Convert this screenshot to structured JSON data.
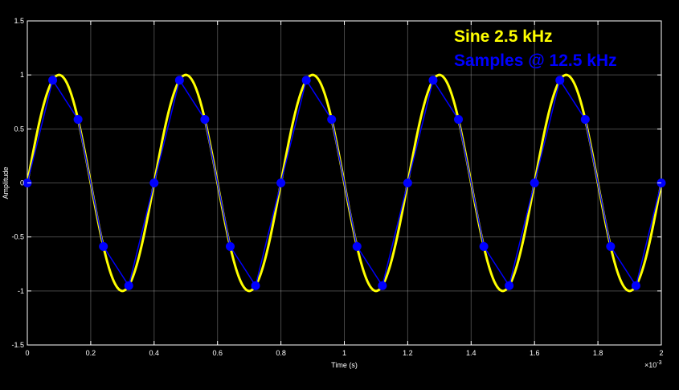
{
  "chart_data": {
    "type": "line",
    "xlabel": "Time (s)",
    "ylabel": "Amplitude",
    "x_exponent": "×10",
    "x_exponent_power": "-3",
    "xlim": [
      0,
      0.002
    ],
    "ylim": [
      -1.5,
      1.5
    ],
    "x_ticks": [
      "0",
      "0.2",
      "0.4",
      "0.6",
      "0.8",
      "1",
      "1.2",
      "1.4",
      "1.6",
      "1.8",
      "2"
    ],
    "y_ticks": [
      "1.5",
      "1",
      "0.5",
      "0",
      "-0.5",
      "-1",
      "-1.5"
    ],
    "grid": true,
    "legend_placement": "top-right",
    "series": [
      {
        "name": "Sine 2.5 kHz",
        "color": "#ffff00",
        "frequency_hz": 2500,
        "amplitude": 1
      },
      {
        "name": "Samples @ 12.5 kHz",
        "color": "#0000ff",
        "x": [
          0,
          8e-05,
          0.00016,
          0.00024,
          0.00032,
          0.0004,
          0.00048,
          0.00056,
          0.00064,
          0.00072,
          0.0008,
          0.00088,
          0.00096,
          0.00104,
          0.00112,
          0.0012,
          0.00128,
          0.00136,
          0.00144,
          0.00152,
          0.0016,
          0.00168,
          0.00176,
          0.00184,
          0.00192,
          0.002
        ],
        "values": [
          0,
          0.951,
          0.588,
          -0.588,
          -0.951,
          0,
          0.951,
          0.588,
          -0.588,
          -0.951,
          0,
          0.951,
          0.588,
          -0.588,
          -0.951,
          0,
          0.951,
          0.588,
          -0.588,
          -0.951,
          0,
          0.951,
          0.588,
          -0.588,
          -0.951,
          0
        ]
      }
    ]
  }
}
